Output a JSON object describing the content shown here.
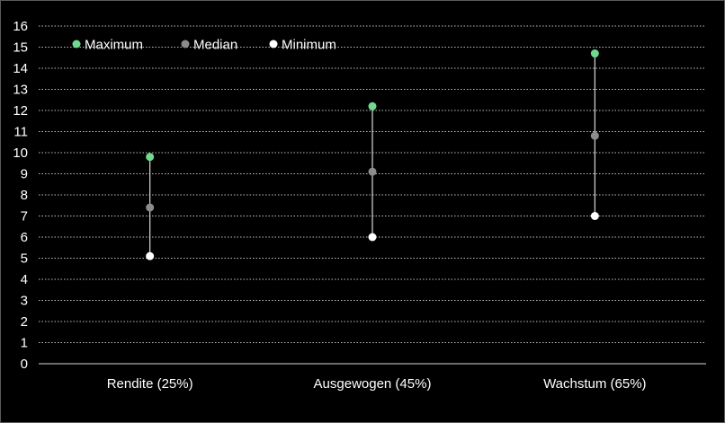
{
  "chart_data": {
    "type": "scatter",
    "categories": [
      "Rendite (25%)",
      "Ausgewogen (45%)",
      "Wachstum (65%)"
    ],
    "series": [
      {
        "name": "Maximum",
        "color": "#6fd98e",
        "values": [
          9.8,
          12.2,
          14.7
        ]
      },
      {
        "name": "Median",
        "color": "#8c8c8c",
        "values": [
          7.4,
          9.1,
          10.8
        ]
      },
      {
        "name": "Minimum",
        "color": "#ffffff",
        "values": [
          5.1,
          6.0,
          7.0
        ]
      }
    ],
    "ylim": [
      0,
      16
    ],
    "yticks": [
      0,
      1,
      2,
      3,
      4,
      5,
      6,
      7,
      8,
      9,
      10,
      11,
      12,
      13,
      14,
      15,
      16
    ],
    "grid": true,
    "legend": "top-left",
    "range_lines": true,
    "background": "#000000"
  }
}
